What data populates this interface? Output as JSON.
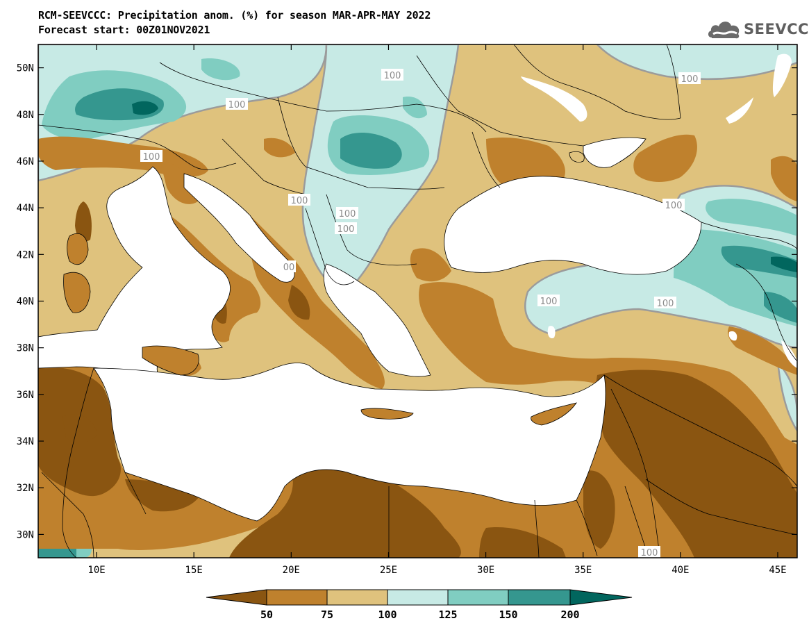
{
  "title": {
    "line1": "RCM-SEEVCCC: Precipitation anom. (%) for season MAR-APR-MAY 2022",
    "line2": "Forecast start: 00Z01NOV2021"
  },
  "logo": {
    "text": "SEEVCCC",
    "icon": "cloud-icon"
  },
  "map": {
    "lon_range": [
      7,
      46
    ],
    "lat_range": [
      29,
      51
    ],
    "lon_ticks": [
      "10E",
      "15E",
      "20E",
      "25E",
      "30E",
      "35E",
      "40E",
      "45E"
    ],
    "lat_ticks": [
      "50N",
      "48N",
      "46N",
      "44N",
      "42N",
      "40N",
      "38N",
      "36N",
      "34N",
      "32N",
      "30N"
    ],
    "contour_labels": [
      "100",
      "100",
      "100",
      "100",
      "100",
      "100",
      "100",
      "100",
      "100",
      "100",
      "100",
      "00"
    ],
    "colors": {
      "below_50": "#8a5511",
      "50_75": "#bf812d",
      "75_100": "#dfc27d",
      "100_125": "#c7eae5",
      "125_150": "#80cdc1",
      "150_200": "#35978f",
      "above_200": "#01665e",
      "sea": "#ffffff",
      "contour_100": "#9b9b9b"
    }
  },
  "colorbar": {
    "levels": [
      "50",
      "75",
      "100",
      "125",
      "150",
      "200"
    ]
  }
}
